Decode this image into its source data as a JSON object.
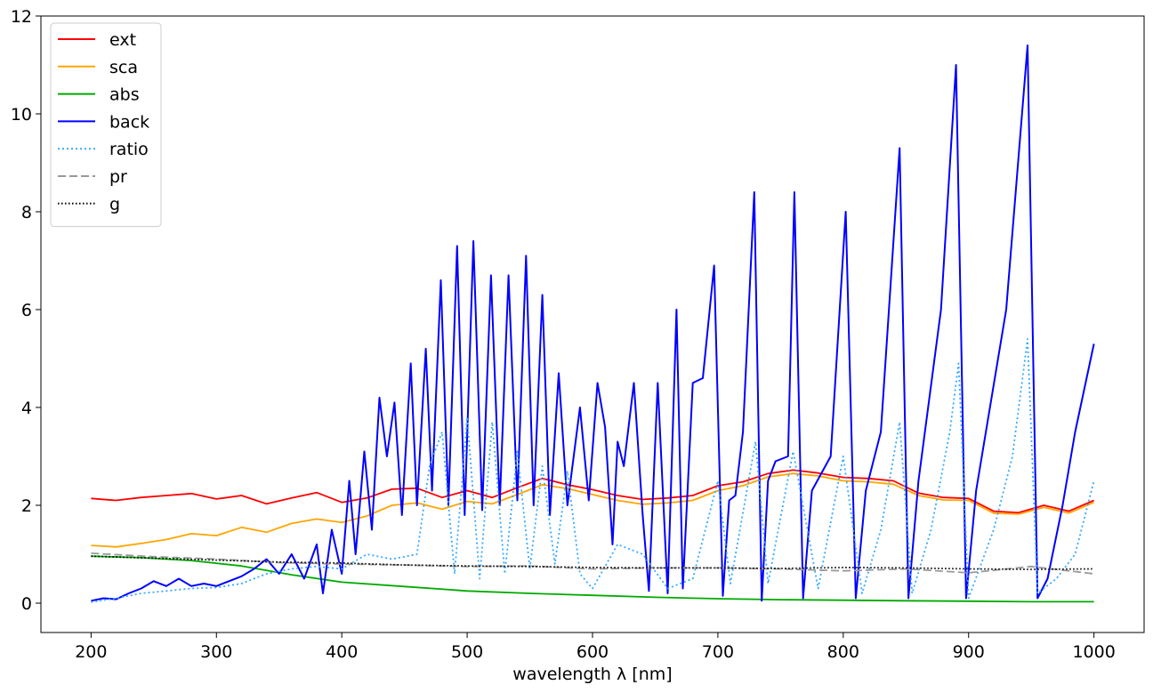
{
  "chart_data": {
    "type": "line",
    "title": "",
    "xlabel": "wavelength λ [nm]",
    "ylabel": "",
    "xlim": [
      160,
      1040
    ],
    "ylim": [
      -0.6,
      12
    ],
    "xticks": [
      200,
      300,
      400,
      500,
      600,
      700,
      800,
      900,
      1000
    ],
    "yticks": [
      0,
      2,
      4,
      6,
      8,
      10,
      12
    ],
    "legend_position": "upper-left",
    "grid": false,
    "series": [
      {
        "name": "ext",
        "color": "#ff0000",
        "dash": "solid",
        "points": [
          [
            200,
            2.14
          ],
          [
            220,
            2.1
          ],
          [
            240,
            2.16
          ],
          [
            260,
            2.2
          ],
          [
            280,
            2.24
          ],
          [
            300,
            2.13
          ],
          [
            320,
            2.2
          ],
          [
            340,
            2.03
          ],
          [
            360,
            2.15
          ],
          [
            380,
            2.26
          ],
          [
            400,
            2.06
          ],
          [
            420,
            2.15
          ],
          [
            440,
            2.33
          ],
          [
            460,
            2.35
          ],
          [
            480,
            2.16
          ],
          [
            500,
            2.3
          ],
          [
            520,
            2.16
          ],
          [
            540,
            2.36
          ],
          [
            560,
            2.55
          ],
          [
            580,
            2.42
          ],
          [
            600,
            2.32
          ],
          [
            620,
            2.2
          ],
          [
            640,
            2.12
          ],
          [
            660,
            2.15
          ],
          [
            680,
            2.2
          ],
          [
            700,
            2.4
          ],
          [
            720,
            2.48
          ],
          [
            740,
            2.65
          ],
          [
            760,
            2.72
          ],
          [
            780,
            2.66
          ],
          [
            800,
            2.57
          ],
          [
            820,
            2.55
          ],
          [
            840,
            2.5
          ],
          [
            860,
            2.25
          ],
          [
            880,
            2.16
          ],
          [
            900,
            2.14
          ],
          [
            920,
            1.88
          ],
          [
            940,
            1.85
          ],
          [
            960,
            2.0
          ],
          [
            980,
            1.88
          ],
          [
            1000,
            2.1
          ]
        ]
      },
      {
        "name": "sca",
        "color": "#ffa500",
        "dash": "solid",
        "points": [
          [
            200,
            1.18
          ],
          [
            220,
            1.15
          ],
          [
            240,
            1.22
          ],
          [
            260,
            1.3
          ],
          [
            280,
            1.42
          ],
          [
            300,
            1.38
          ],
          [
            320,
            1.55
          ],
          [
            340,
            1.45
          ],
          [
            360,
            1.63
          ],
          [
            380,
            1.72
          ],
          [
            400,
            1.65
          ],
          [
            420,
            1.78
          ],
          [
            440,
            2.0
          ],
          [
            460,
            2.05
          ],
          [
            480,
            1.92
          ],
          [
            500,
            2.08
          ],
          [
            520,
            2.03
          ],
          [
            540,
            2.22
          ],
          [
            560,
            2.42
          ],
          [
            580,
            2.34
          ],
          [
            600,
            2.22
          ],
          [
            620,
            2.1
          ],
          [
            640,
            2.02
          ],
          [
            660,
            2.05
          ],
          [
            680,
            2.1
          ],
          [
            700,
            2.3
          ],
          [
            720,
            2.4
          ],
          [
            740,
            2.58
          ],
          [
            760,
            2.65
          ],
          [
            780,
            2.6
          ],
          [
            800,
            2.5
          ],
          [
            820,
            2.48
          ],
          [
            840,
            2.43
          ],
          [
            860,
            2.2
          ],
          [
            880,
            2.11
          ],
          [
            900,
            2.1
          ],
          [
            920,
            1.84
          ],
          [
            940,
            1.82
          ],
          [
            960,
            1.96
          ],
          [
            980,
            1.84
          ],
          [
            1000,
            2.06
          ]
        ]
      },
      {
        "name": "abs",
        "color": "#00aa00",
        "dash": "solid",
        "points": [
          [
            200,
            0.96
          ],
          [
            240,
            0.93
          ],
          [
            280,
            0.87
          ],
          [
            320,
            0.76
          ],
          [
            360,
            0.58
          ],
          [
            400,
            0.43
          ],
          [
            450,
            0.34
          ],
          [
            500,
            0.25
          ],
          [
            550,
            0.2
          ],
          [
            600,
            0.16
          ],
          [
            650,
            0.12
          ],
          [
            700,
            0.09
          ],
          [
            750,
            0.07
          ],
          [
            800,
            0.06
          ],
          [
            850,
            0.05
          ],
          [
            900,
            0.04
          ],
          [
            950,
            0.03
          ],
          [
            1000,
            0.03
          ]
        ]
      },
      {
        "name": "back",
        "color": "#0000ff",
        "dash": "solid",
        "points": [
          [
            200,
            0.05
          ],
          [
            210,
            0.1
          ],
          [
            220,
            0.08
          ],
          [
            230,
            0.2
          ],
          [
            240,
            0.3
          ],
          [
            250,
            0.45
          ],
          [
            260,
            0.35
          ],
          [
            270,
            0.5
          ],
          [
            280,
            0.35
          ],
          [
            290,
            0.4
          ],
          [
            300,
            0.35
          ],
          [
            310,
            0.45
          ],
          [
            320,
            0.55
          ],
          [
            330,
            0.7
          ],
          [
            340,
            0.9
          ],
          [
            350,
            0.6
          ],
          [
            360,
            1.0
          ],
          [
            370,
            0.5
          ],
          [
            380,
            1.2
          ],
          [
            385,
            0.2
          ],
          [
            392,
            1.5
          ],
          [
            400,
            0.6
          ],
          [
            406,
            2.5
          ],
          [
            411,
            1.0
          ],
          [
            418,
            3.1
          ],
          [
            424,
            1.5
          ],
          [
            430,
            4.2
          ],
          [
            436,
            3.0
          ],
          [
            442,
            4.1
          ],
          [
            448,
            1.8
          ],
          [
            455,
            4.9
          ],
          [
            460,
            2.0
          ],
          [
            467,
            5.2
          ],
          [
            472,
            2.3
          ],
          [
            479,
            6.6
          ],
          [
            485,
            2.0
          ],
          [
            492,
            7.3
          ],
          [
            498,
            1.8
          ],
          [
            505,
            7.4
          ],
          [
            512,
            1.9
          ],
          [
            519,
            6.7
          ],
          [
            526,
            2.0
          ],
          [
            533,
            6.7
          ],
          [
            540,
            2.1
          ],
          [
            547,
            7.1
          ],
          [
            553,
            2.0
          ],
          [
            560,
            6.3
          ],
          [
            566,
            1.8
          ],
          [
            573,
            4.7
          ],
          [
            580,
            2.0
          ],
          [
            590,
            4.0
          ],
          [
            597,
            2.1
          ],
          [
            604,
            4.5
          ],
          [
            610,
            3.6
          ],
          [
            616,
            1.2
          ],
          [
            620,
            3.3
          ],
          [
            625,
            2.8
          ],
          [
            633,
            4.5
          ],
          [
            640,
            1.8
          ],
          [
            645,
            0.25
          ],
          [
            652,
            4.5
          ],
          [
            660,
            0.2
          ],
          [
            667,
            6.0
          ],
          [
            672,
            0.3
          ],
          [
            680,
            4.5
          ],
          [
            688,
            4.6
          ],
          [
            697,
            6.9
          ],
          [
            704,
            0.15
          ],
          [
            709,
            2.1
          ],
          [
            714,
            2.2
          ],
          [
            720,
            3.5
          ],
          [
            729,
            8.4
          ],
          [
            735,
            0.05
          ],
          [
            740,
            2.5
          ],
          [
            746,
            2.9
          ],
          [
            756,
            3.0
          ],
          [
            761,
            8.4
          ],
          [
            768,
            0.1
          ],
          [
            775,
            2.3
          ],
          [
            790,
            3.0
          ],
          [
            802,
            8.0
          ],
          [
            810,
            0.1
          ],
          [
            818,
            2.3
          ],
          [
            830,
            3.5
          ],
          [
            845,
            9.3
          ],
          [
            852,
            0.1
          ],
          [
            860,
            2.5
          ],
          [
            878,
            6.0
          ],
          [
            890,
            11.0
          ],
          [
            898,
            0.1
          ],
          [
            906,
            2.3
          ],
          [
            930,
            6.0
          ],
          [
            947,
            11.4
          ],
          [
            955,
            0.1
          ],
          [
            963,
            0.5
          ],
          [
            975,
            2.0
          ],
          [
            985,
            3.5
          ],
          [
            1000,
            5.3
          ]
        ]
      },
      {
        "name": "ratio",
        "color": "#33aaff",
        "dash": "dotted",
        "points": [
          [
            200,
            0.02
          ],
          [
            220,
            0.1
          ],
          [
            240,
            0.2
          ],
          [
            260,
            0.25
          ],
          [
            280,
            0.3
          ],
          [
            300,
            0.32
          ],
          [
            320,
            0.4
          ],
          [
            340,
            0.6
          ],
          [
            360,
            0.7
          ],
          [
            380,
            0.75
          ],
          [
            400,
            0.7
          ],
          [
            420,
            1.0
          ],
          [
            440,
            0.9
          ],
          [
            460,
            1.0
          ],
          [
            470,
            2.8
          ],
          [
            480,
            3.5
          ],
          [
            490,
            0.6
          ],
          [
            500,
            3.8
          ],
          [
            510,
            0.5
          ],
          [
            520,
            3.7
          ],
          [
            530,
            0.6
          ],
          [
            540,
            3.1
          ],
          [
            550,
            0.7
          ],
          [
            560,
            2.8
          ],
          [
            570,
            0.8
          ],
          [
            580,
            2.7
          ],
          [
            590,
            0.6
          ],
          [
            600,
            0.3
          ],
          [
            620,
            1.2
          ],
          [
            640,
            1.0
          ],
          [
            660,
            0.3
          ],
          [
            680,
            0.5
          ],
          [
            700,
            2.5
          ],
          [
            710,
            0.4
          ],
          [
            730,
            3.3
          ],
          [
            740,
            0.4
          ],
          [
            760,
            3.1
          ],
          [
            780,
            0.3
          ],
          [
            800,
            3.0
          ],
          [
            815,
            0.2
          ],
          [
            830,
            1.5
          ],
          [
            845,
            3.7
          ],
          [
            855,
            0.2
          ],
          [
            870,
            1.5
          ],
          [
            885,
            3.5
          ],
          [
            892,
            4.9
          ],
          [
            900,
            0.1
          ],
          [
            920,
            1.5
          ],
          [
            935,
            3.0
          ],
          [
            947,
            5.4
          ],
          [
            955,
            0.2
          ],
          [
            970,
            0.5
          ],
          [
            985,
            1.0
          ],
          [
            1000,
            2.5
          ]
        ]
      },
      {
        "name": "pr",
        "color": "#999999",
        "dash": "dashed",
        "points": [
          [
            200,
            1.02
          ],
          [
            250,
            0.95
          ],
          [
            300,
            0.9
          ],
          [
            350,
            0.83
          ],
          [
            400,
            0.8
          ],
          [
            450,
            0.78
          ],
          [
            500,
            0.75
          ],
          [
            550,
            0.76
          ],
          [
            600,
            0.7
          ],
          [
            650,
            0.72
          ],
          [
            700,
            0.72
          ],
          [
            750,
            0.7
          ],
          [
            800,
            0.66
          ],
          [
            850,
            0.7
          ],
          [
            900,
            0.62
          ],
          [
            950,
            0.75
          ],
          [
            1000,
            0.6
          ]
        ]
      },
      {
        "name": "g",
        "color": "#000000",
        "dash": "dotted-dense",
        "points": [
          [
            200,
            0.96
          ],
          [
            250,
            0.92
          ],
          [
            300,
            0.88
          ],
          [
            350,
            0.84
          ],
          [
            400,
            0.82
          ],
          [
            450,
            0.78
          ],
          [
            500,
            0.76
          ],
          [
            550,
            0.75
          ],
          [
            600,
            0.73
          ],
          [
            650,
            0.72
          ],
          [
            700,
            0.72
          ],
          [
            750,
            0.71
          ],
          [
            800,
            0.73
          ],
          [
            850,
            0.72
          ],
          [
            900,
            0.7
          ],
          [
            950,
            0.69
          ],
          [
            1000,
            0.7
          ]
        ]
      }
    ]
  }
}
